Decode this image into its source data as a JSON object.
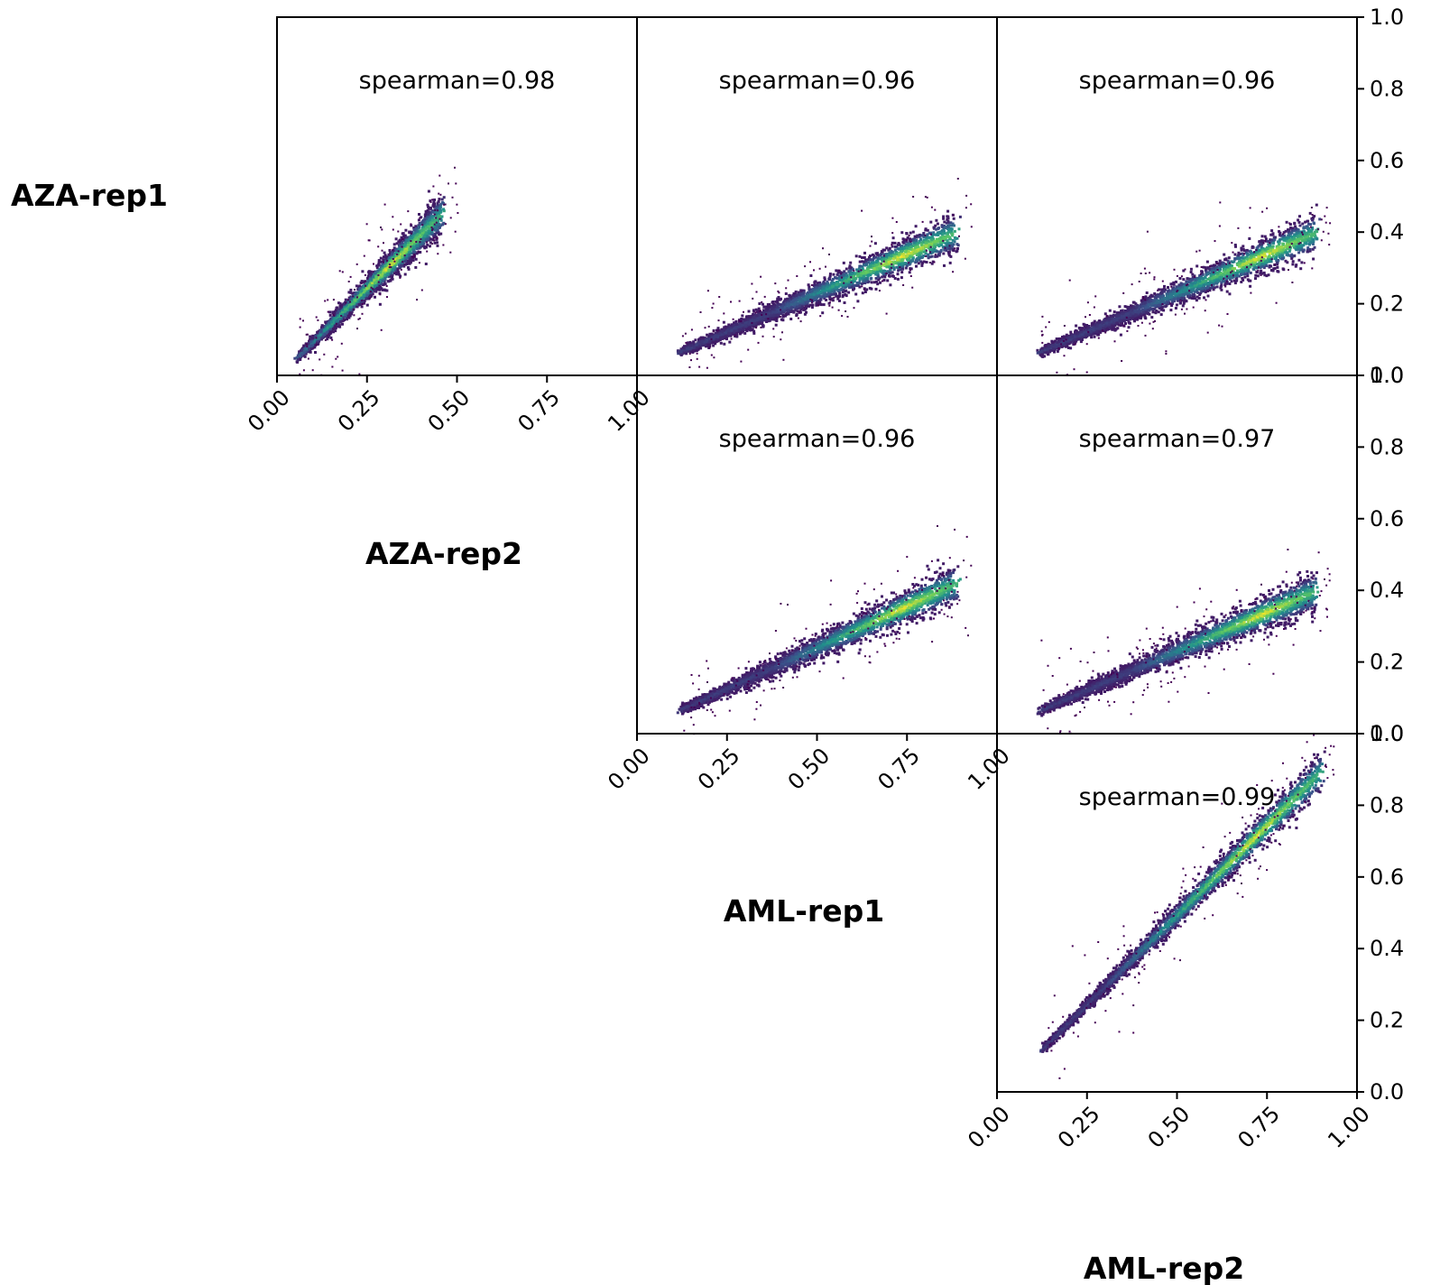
{
  "row_labels": [
    "AZA-rep1",
    "AZA-rep2",
    "AML-rep1"
  ],
  "col_labels": [
    "AZA-rep2",
    "AML-rep1",
    "AML-rep2"
  ],
  "chart_data": {
    "type": "scatter",
    "style": "2D density hexbin scatter matrix (upper triangle)",
    "colormap": "viridis",
    "axes": {
      "xlim": [
        0.0,
        1.0
      ],
      "ylim": [
        0.0,
        1.0
      ],
      "x_ticks": [
        "0.00",
        "0.25",
        "0.50",
        "0.75",
        "1.00"
      ],
      "y_ticks": [
        "0.0",
        "0.2",
        "0.4",
        "0.6",
        "0.8",
        "1.0"
      ],
      "y_axis_side": "right",
      "grid": false
    },
    "panels": [
      {
        "row": 0,
        "col": 0,
        "y_series": "AZA-rep1",
        "x_series": "AZA-rep2",
        "annotation": "spearman=0.98",
        "trend": {
          "x_start": 0.06,
          "y_start": 0.06,
          "x_end": 0.45,
          "y_end": 0.45,
          "core_x_range": [
            0.25,
            0.37
          ]
        }
      },
      {
        "row": 0,
        "col": 1,
        "y_series": "AZA-rep1",
        "x_series": "AML-rep1",
        "annotation": "spearman=0.96",
        "trend": {
          "x_start": 0.12,
          "y_start": 0.07,
          "x_end": 0.88,
          "y_end": 0.4,
          "core_x_range": [
            0.65,
            0.82
          ]
        }
      },
      {
        "row": 0,
        "col": 2,
        "y_series": "AZA-rep1",
        "x_series": "AML-rep2",
        "annotation": "spearman=0.96",
        "trend": {
          "x_start": 0.12,
          "y_start": 0.07,
          "x_end": 0.88,
          "y_end": 0.4,
          "core_x_range": [
            0.65,
            0.82
          ]
        }
      },
      {
        "row": 1,
        "col": 1,
        "y_series": "AZA-rep2",
        "x_series": "AML-rep1",
        "annotation": "spearman=0.96",
        "trend": {
          "x_start": 0.12,
          "y_start": 0.07,
          "x_end": 0.88,
          "y_end": 0.42,
          "core_x_range": [
            0.65,
            0.82
          ]
        }
      },
      {
        "row": 1,
        "col": 2,
        "y_series": "AZA-rep2",
        "x_series": "AML-rep2",
        "annotation": "spearman=0.97",
        "trend": {
          "x_start": 0.12,
          "y_start": 0.07,
          "x_end": 0.88,
          "y_end": 0.4,
          "core_x_range": [
            0.65,
            0.82
          ]
        }
      },
      {
        "row": 2,
        "col": 2,
        "y_series": "AML-rep1",
        "x_series": "AML-rep2",
        "annotation": "spearman=0.99",
        "trend": {
          "x_start": 0.13,
          "y_start": 0.13,
          "x_end": 0.89,
          "y_end": 0.89,
          "core_x_range": [
            0.6,
            0.82
          ]
        }
      }
    ]
  }
}
